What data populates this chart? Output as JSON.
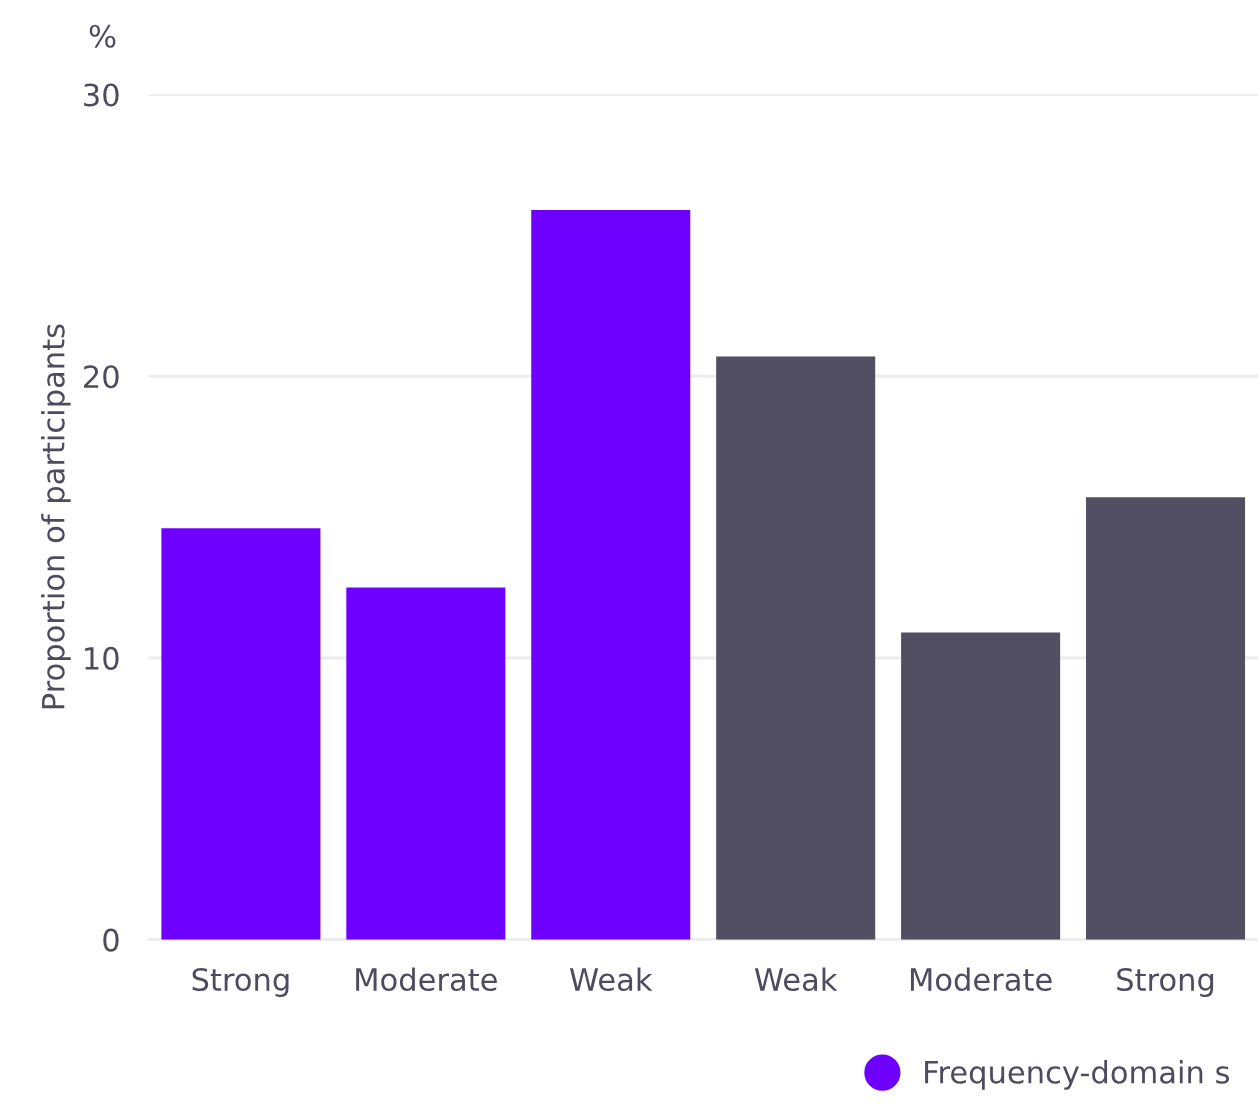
{
  "chart_data": {
    "type": "bar",
    "ylabel": "Proportion of participants",
    "annotations": [
      "%"
    ],
    "categories": [
      "Strong",
      "Moderate",
      "Weak",
      "Weak",
      "Moderate",
      "Strong"
    ],
    "series": [
      {
        "name": "Frequency-domain s",
        "color": "#6e00ff",
        "values": [
          14.6,
          12.5,
          25.9,
          null,
          null,
          null
        ]
      },
      {
        "color": "#524f63",
        "values": [
          null,
          null,
          null,
          20.7,
          10.9,
          15.7
        ]
      }
    ],
    "ylim": [
      0,
      30
    ],
    "yticks": [
      0,
      10,
      20,
      30
    ],
    "grid": "y",
    "legend": "bottom right"
  }
}
